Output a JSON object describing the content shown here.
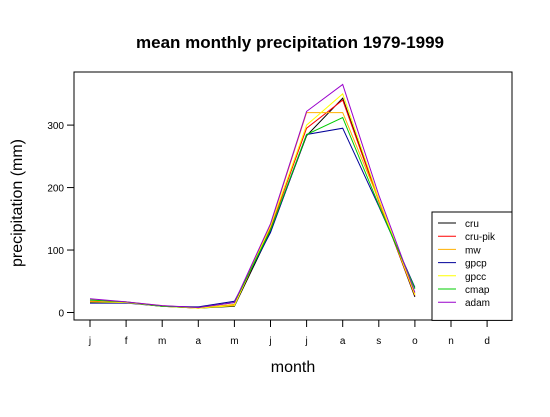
{
  "chart_data": {
    "type": "line",
    "title": "mean monthly precipitation 1979-1999",
    "xlabel": "month",
    "ylabel": "precipitation (mm)",
    "categories": [
      "j",
      "f",
      "m",
      "a",
      "m",
      "j",
      "j",
      "a",
      "s",
      "o",
      "n",
      "d"
    ],
    "yticks": [
      0,
      100,
      200,
      300
    ],
    "ylim": [
      -12,
      385
    ],
    "grid": false,
    "legend_position": "bottom-right",
    "series": [
      {
        "name": "cru",
        "color": "#000000",
        "values": [
          16,
          16,
          10,
          7,
          10,
          130,
          283,
          343,
          180,
          25,
          null,
          null
        ]
      },
      {
        "name": "cru-pik",
        "color": "#ff0000",
        "values": [
          18,
          16,
          10,
          7,
          12,
          135,
          295,
          340,
          178,
          27,
          null,
          null
        ]
      },
      {
        "name": "mw",
        "color": "#ffb000",
        "values": [
          20,
          17,
          11,
          7,
          13,
          140,
          320,
          320,
          180,
          30,
          null,
          null
        ]
      },
      {
        "name": "gpcp",
        "color": "#000099",
        "values": [
          15,
          15,
          10,
          9,
          18,
          128,
          285,
          295,
          170,
          40,
          null,
          null
        ]
      },
      {
        "name": "gpcc",
        "color": "#ffff00",
        "values": [
          17,
          16,
          10,
          7,
          11,
          138,
          300,
          350,
          182,
          28,
          null,
          null
        ]
      },
      {
        "name": "cmap",
        "color": "#00cc00",
        "values": [
          20,
          17,
          10,
          8,
          16,
          132,
          285,
          312,
          172,
          38,
          null,
          null
        ]
      },
      {
        "name": "adam",
        "color": "#9900cc",
        "values": [
          22,
          17,
          11,
          8,
          16,
          142,
          322,
          365,
          188,
          32,
          null,
          null
        ]
      }
    ]
  }
}
